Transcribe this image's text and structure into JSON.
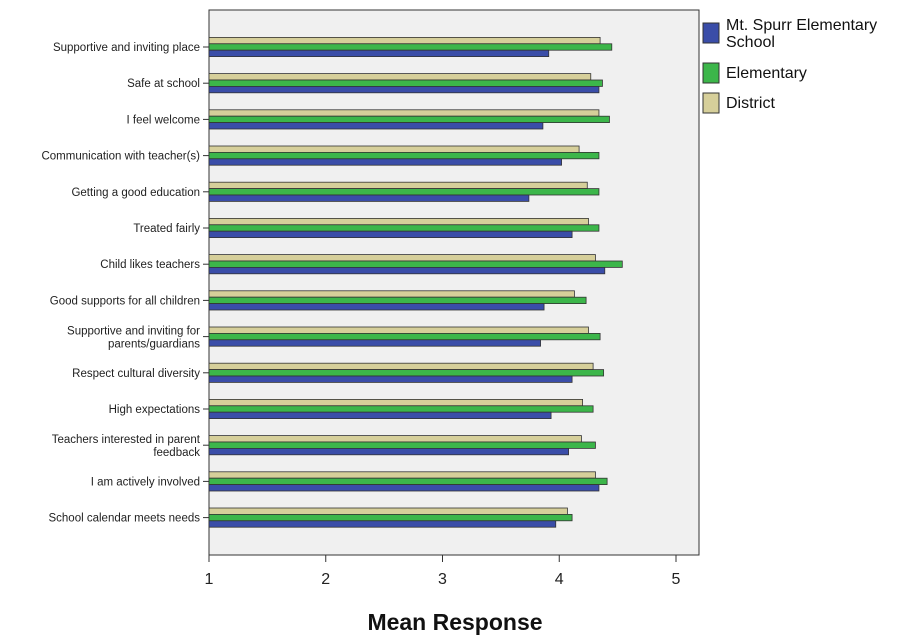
{
  "chart_data": {
    "type": "bar",
    "orientation": "horizontal",
    "categories": [
      [
        "Supportive and inviting place"
      ],
      [
        "Safe at school"
      ],
      [
        "I feel welcome"
      ],
      [
        "Communication with teacher(s)"
      ],
      [
        "Getting a good education"
      ],
      [
        "Treated fairly"
      ],
      [
        "Child likes teachers"
      ],
      [
        "Good supports for all children"
      ],
      [
        "Supportive and inviting for",
        "parents/guardians"
      ],
      [
        "Respect cultural diversity"
      ],
      [
        "High expectations"
      ],
      [
        "Teachers interested in parent",
        "feedback"
      ],
      [
        "I am actively involved"
      ],
      [
        "School calendar meets needs"
      ]
    ],
    "series": [
      {
        "name": [
          "Mt. Spurr Elementary",
          "School"
        ],
        "color": "#3a4da8",
        "values": [
          3.91,
          4.34,
          3.86,
          4.02,
          3.74,
          4.11,
          4.39,
          3.87,
          3.84,
          4.11,
          3.93,
          4.08,
          4.34,
          3.97
        ]
      },
      {
        "name": [
          "Elementary"
        ],
        "color": "#3cb64a",
        "values": [
          4.45,
          4.37,
          4.43,
          4.34,
          4.34,
          4.34,
          4.54,
          4.23,
          4.35,
          4.38,
          4.29,
          4.31,
          4.41,
          4.11
        ]
      },
      {
        "name": [
          "District"
        ],
        "color": "#d6cf9a",
        "values": [
          4.35,
          4.27,
          4.34,
          4.17,
          4.24,
          4.25,
          4.31,
          4.13,
          4.25,
          4.29,
          4.2,
          4.19,
          4.31,
          4.07
        ]
      }
    ],
    "bar_order_within_group": [
      "District",
      "Elementary",
      "Mt. Spurr Elementary School"
    ],
    "xlabel": "Mean Response",
    "xlim": [
      1,
      5.2
    ],
    "xticks": [
      "1",
      "2",
      "3",
      "4",
      "5"
    ],
    "plot_background": "#f0f0f0",
    "grid": false,
    "legend_position": "right"
  }
}
